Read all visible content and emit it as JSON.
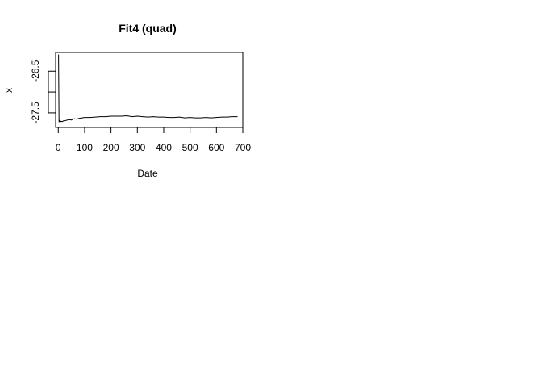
{
  "chart_data": {
    "type": "line",
    "title": "Fit4 (quad)",
    "xlabel": "Date",
    "ylabel": "x",
    "xlim": [
      -10,
      700
    ],
    "ylim": [
      -27.85,
      -26.05
    ],
    "x_ticks": [
      "0",
      "100",
      "200",
      "300",
      "400",
      "500",
      "600",
      "700"
    ],
    "y_ticks": [
      "-27.5",
      "-26.5"
    ],
    "grid": false,
    "legend": "none",
    "line_color": "#000000",
    "series": [
      {
        "x": [
          1,
          3,
          5,
          7,
          10,
          15,
          20,
          30,
          40,
          50,
          60,
          70,
          80,
          90,
          100,
          120,
          140,
          160,
          180,
          200,
          220,
          240,
          260,
          280,
          300,
          320,
          340,
          360,
          380,
          400,
          420,
          440,
          460,
          480,
          500,
          520,
          540,
          560,
          580,
          600,
          620,
          640,
          660,
          680
        ],
        "y": [
          -26.1,
          -27.72,
          -27.69,
          -27.72,
          -27.7,
          -27.71,
          -27.69,
          -27.68,
          -27.66,
          -27.67,
          -27.64,
          -27.65,
          -27.63,
          -27.62,
          -27.61,
          -27.61,
          -27.6,
          -27.59,
          -27.59,
          -27.58,
          -27.58,
          -27.58,
          -27.57,
          -27.59,
          -27.58,
          -27.59,
          -27.6,
          -27.59,
          -27.6,
          -27.6,
          -27.61,
          -27.61,
          -27.6,
          -27.62,
          -27.61,
          -27.62,
          -27.62,
          -27.61,
          -27.62,
          -27.61,
          -27.6,
          -27.6,
          -27.59,
          -27.59
        ]
      }
    ]
  }
}
